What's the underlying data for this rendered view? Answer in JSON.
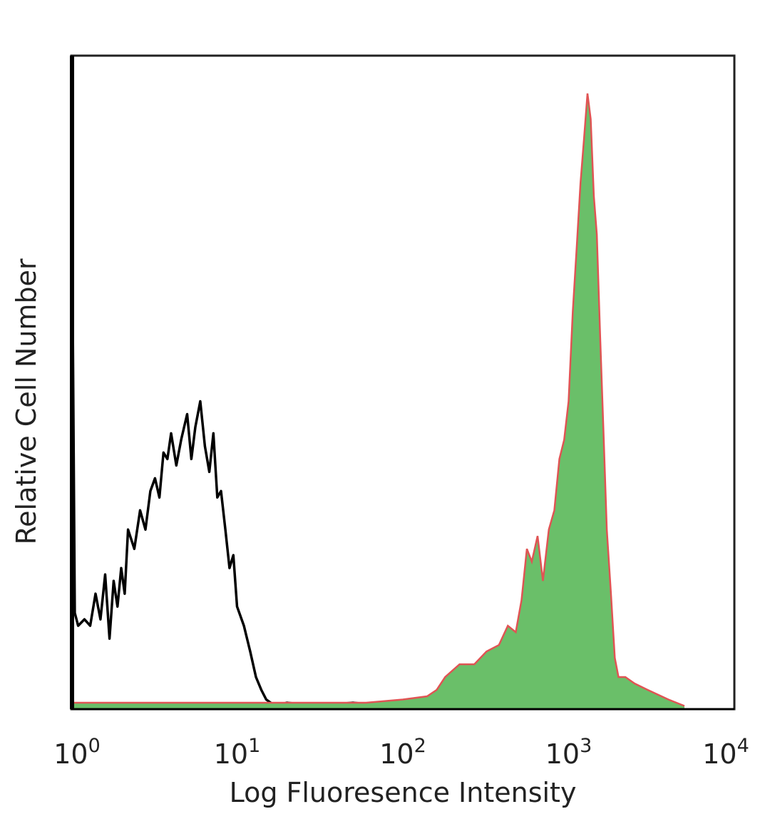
{
  "chart_data": {
    "type": "area",
    "title": "",
    "xlabel": "Log Fluoresence Intensity",
    "ylabel": "Relative Cell Number",
    "x_scale": "log",
    "xlim": [
      1,
      10000
    ],
    "ylim": [
      0,
      1
    ],
    "grid": false,
    "legend": "none",
    "x_ticks": [
      {
        "base": "10",
        "exp": "0"
      },
      {
        "base": "10",
        "exp": "1"
      },
      {
        "base": "10",
        "exp": "2"
      },
      {
        "base": "10",
        "exp": "3"
      },
      {
        "base": "10",
        "exp": "4"
      }
    ],
    "series": [
      {
        "style": "outline",
        "color": "#000000",
        "x": [
          1.0,
          1.05,
          1.1,
          1.2,
          1.3,
          1.4,
          1.5,
          1.6,
          1.7,
          1.8,
          1.9,
          2.0,
          2.1,
          2.2,
          2.4,
          2.6,
          2.8,
          3.0,
          3.2,
          3.4,
          3.6,
          3.8,
          4.0,
          4.3,
          4.6,
          5.0,
          5.3,
          5.6,
          6.0,
          6.4,
          6.8,
          7.2,
          7.6,
          8.0,
          8.5,
          9.0,
          9.5,
          10.0,
          11.0,
          12.0,
          13.0,
          14.0,
          15.0,
          17.0,
          20.0,
          30.0,
          50.0,
          80.0,
          120.0
        ],
        "y": [
          0.93,
          0.15,
          0.13,
          0.14,
          0.13,
          0.18,
          0.14,
          0.21,
          0.11,
          0.2,
          0.16,
          0.22,
          0.18,
          0.28,
          0.25,
          0.31,
          0.28,
          0.34,
          0.36,
          0.33,
          0.4,
          0.39,
          0.43,
          0.38,
          0.42,
          0.46,
          0.39,
          0.44,
          0.48,
          0.41,
          0.37,
          0.43,
          0.33,
          0.34,
          0.28,
          0.22,
          0.24,
          0.16,
          0.13,
          0.09,
          0.05,
          0.03,
          0.015,
          0.005,
          0.01,
          0.005,
          0.01,
          0.005,
          0.01
        ]
      },
      {
        "style": "filled",
        "color": "#6abf69",
        "edge_color": "#e05454",
        "x": [
          1.0,
          5.0,
          20.0,
          60.0,
          100.0,
          140.0,
          160.0,
          180.0,
          220.0,
          270.0,
          320.0,
          380.0,
          430.0,
          480.0,
          520.0,
          560.0,
          600.0,
          650.0,
          700.0,
          760.0,
          820.0,
          880.0,
          940.0,
          1000.0,
          1060.0,
          1120.0,
          1180.0,
          1240.0,
          1300.0,
          1360.0,
          1420.0,
          1480.0,
          1550.0,
          1620.0,
          1700.0,
          1800.0,
          1900.0,
          2000.0,
          2200.0,
          2500.0,
          3000.0,
          4000.0,
          5000.0
        ],
        "y": [
          0.01,
          0.01,
          0.01,
          0.01,
          0.015,
          0.02,
          0.03,
          0.05,
          0.07,
          0.07,
          0.09,
          0.1,
          0.13,
          0.12,
          0.17,
          0.25,
          0.23,
          0.27,
          0.2,
          0.28,
          0.31,
          0.39,
          0.42,
          0.48,
          0.62,
          0.72,
          0.82,
          0.89,
          0.96,
          0.92,
          0.8,
          0.74,
          0.58,
          0.44,
          0.28,
          0.18,
          0.08,
          0.05,
          0.05,
          0.04,
          0.03,
          0.015,
          0.005
        ]
      }
    ]
  }
}
